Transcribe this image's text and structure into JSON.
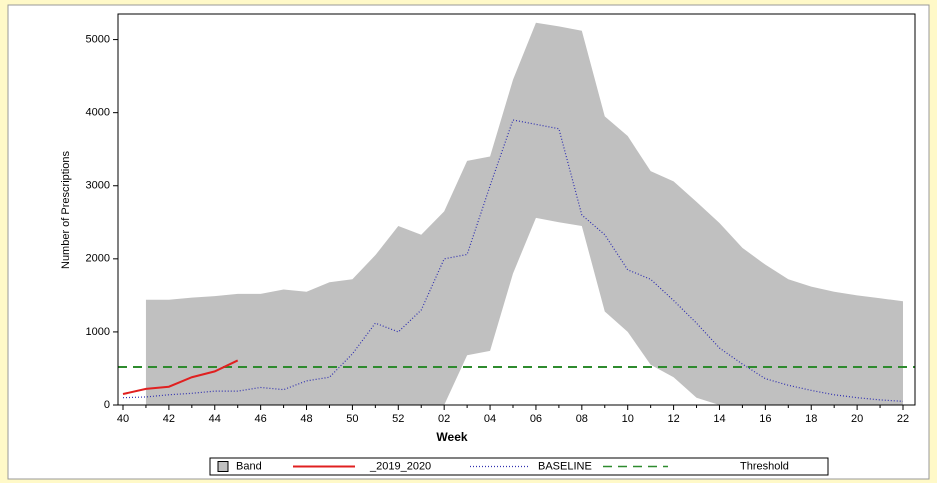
{
  "chart_data": {
    "type": "line",
    "x_label": "Week",
    "y_label": "Number of Prescriptions",
    "categories": [
      "40",
      null,
      "42",
      null,
      "44",
      null,
      "46",
      null,
      "48",
      null,
      "50",
      null,
      "52",
      null,
      "02",
      null,
      "04",
      null,
      "06",
      null,
      "08",
      null,
      "10",
      null,
      "12",
      null,
      "14",
      null,
      "16",
      null,
      "18",
      null,
      "20",
      null,
      "22"
    ],
    "ylim": [
      0,
      5350
    ],
    "yticks": [
      0,
      1000,
      2000,
      3000,
      4000,
      5000
    ],
    "band": {
      "name": "Band",
      "color": "#c0c0c0",
      "upper": [
        null,
        1440,
        1440,
        1470,
        1490,
        1520,
        1520,
        1580,
        1550,
        1680,
        1720,
        2050,
        2450,
        2330,
        2650,
        3340,
        3400,
        4450,
        5230,
        5180,
        5120,
        3950,
        3680,
        3200,
        3060,
        2780,
        2490,
        2150,
        1920,
        1720,
        1620,
        1550,
        1500,
        1460,
        1420
      ],
      "lower": [
        null,
        0,
        0,
        0,
        0,
        0,
        0,
        0,
        0,
        0,
        0,
        0,
        0,
        0,
        0,
        680,
        740,
        1800,
        2560,
        2500,
        2450,
        1280,
        1000,
        550,
        380,
        100,
        0,
        0,
        0,
        0,
        0,
        0,
        0,
        0,
        0
      ]
    },
    "series": [
      {
        "name": "_2019_2020",
        "color": "#e02020",
        "style": "solid",
        "values": [
          150,
          220,
          250,
          380,
          460,
          610,
          null,
          null,
          null,
          null,
          null,
          null,
          null,
          null,
          null,
          null,
          null,
          null,
          null,
          null,
          null,
          null,
          null,
          null,
          null,
          null,
          null,
          null,
          null,
          null,
          null,
          null,
          null,
          null,
          null
        ]
      },
      {
        "name": "BASELINE",
        "color": "#3030b0",
        "style": "dotted",
        "values": [
          100,
          110,
          140,
          160,
          190,
          190,
          240,
          210,
          330,
          380,
          700,
          1120,
          1000,
          1300,
          2000,
          2060,
          3000,
          3900,
          3840,
          3780,
          2600,
          2330,
          1850,
          1720,
          1430,
          1120,
          780,
          560,
          360,
          270,
          200,
          140,
          100,
          70,
          50
        ]
      }
    ],
    "threshold": {
      "name": "Threshold",
      "color": "#2e8b2e",
      "value": 520
    }
  }
}
